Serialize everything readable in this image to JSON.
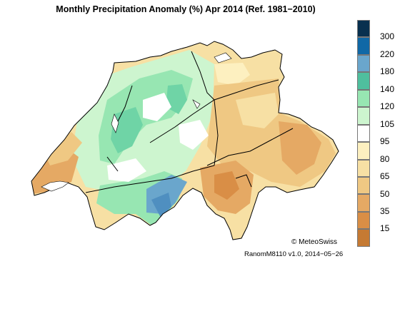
{
  "title": "Monthly Precipitation Anomaly (%) Apr 2014  (Ref. 1981−2010)",
  "legend": {
    "colors": [
      "#08304f",
      "#1068a6",
      "#6aa6cc",
      "#4fbf9e",
      "#97e6b2",
      "#cdf5cf",
      "#ffffff",
      "#fdf0c0",
      "#f7e0a4",
      "#efc883",
      "#e5a964",
      "#d98e46",
      "#c57a33"
    ],
    "labels": [
      "300",
      "220",
      "180",
      "140",
      "120",
      "105",
      "95",
      "80",
      "65",
      "50",
      "35",
      "15"
    ]
  },
  "copyright": "© MeteoSwiss",
  "version": "RanomM8110 v1.0, 2014−05−26"
}
